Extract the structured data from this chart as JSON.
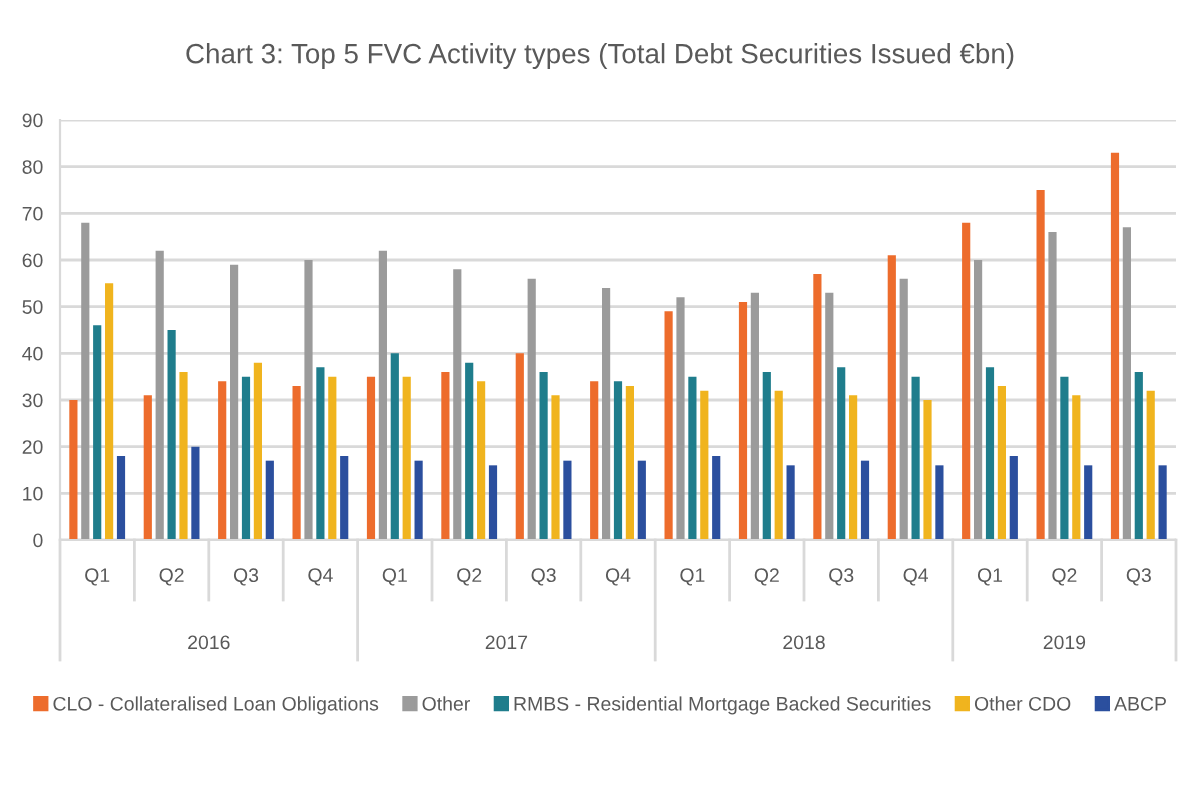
{
  "chart_data": {
    "type": "bar",
    "title": "Chart 3: Top 5 FVC Activity types (Total Debt Securities Issued €bn)",
    "categories": [
      "Q1",
      "Q2",
      "Q3",
      "Q4",
      "Q1",
      "Q2",
      "Q3",
      "Q4",
      "Q1",
      "Q2",
      "Q3",
      "Q4",
      "Q1",
      "Q2",
      "Q3"
    ],
    "annotations": [
      "2016",
      "2017",
      "2018",
      "2019"
    ],
    "series": [
      {
        "name": "CLO - Collateralised Loan Obligations",
        "color": "#ed6c2c",
        "values": [
          30,
          31,
          34,
          33,
          35,
          36,
          40,
          34,
          49,
          51,
          57,
          61,
          68,
          75,
          83
        ]
      },
      {
        "name": "Other",
        "color": "#9b9b9b",
        "values": [
          68,
          62,
          59,
          60,
          62,
          58,
          56,
          54,
          52,
          53,
          53,
          56,
          60,
          66,
          67
        ]
      },
      {
        "name": "RMBS - Residential Mortgage Backed Securities",
        "color": "#1f7d8c",
        "values": [
          46,
          45,
          35,
          37,
          40,
          38,
          36,
          34,
          35,
          36,
          37,
          35,
          37,
          35,
          36
        ]
      },
      {
        "name": "Other CDO",
        "color": "#f0b41e",
        "values": [
          55,
          36,
          38,
          35,
          35,
          34,
          31,
          33,
          32,
          32,
          31,
          30,
          33,
          31,
          32
        ]
      },
      {
        "name": "ABCP",
        "color": "#2b4f9e",
        "values": [
          18,
          20,
          17,
          18,
          17,
          16,
          17,
          17,
          18,
          16,
          17,
          16,
          18,
          16,
          16
        ]
      }
    ],
    "ylim": [
      0,
      90
    ],
    "yticks": [
      0,
      10,
      20,
      30,
      40,
      50,
      60,
      70,
      80,
      90
    ],
    "grid": "y",
    "legend": "bottom"
  }
}
